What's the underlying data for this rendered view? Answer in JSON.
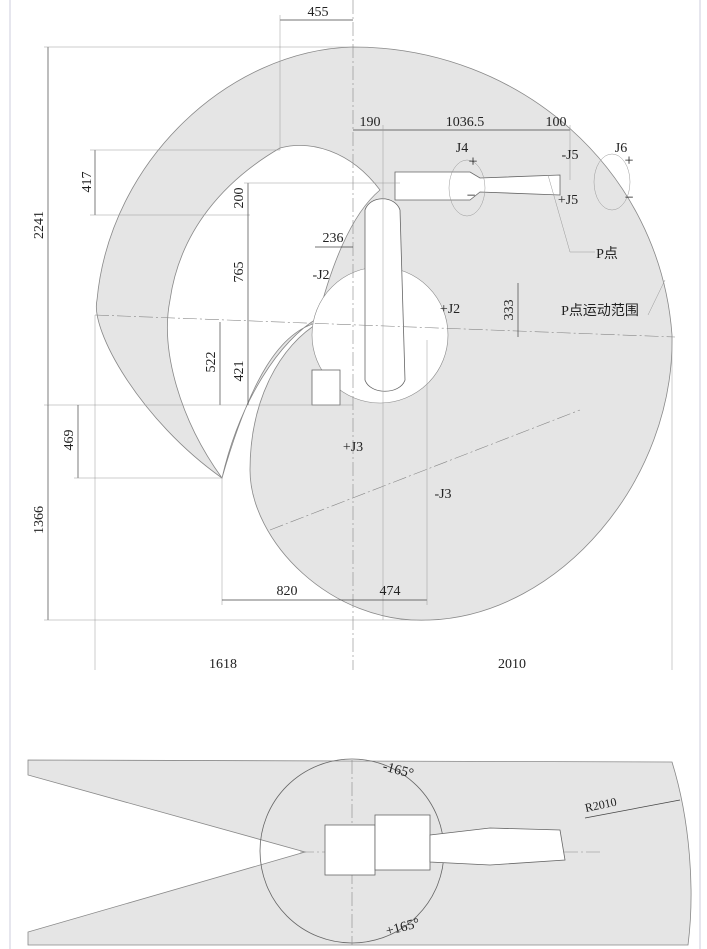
{
  "side_view": {
    "dimensions": [
      "455",
      "190",
      "1036.5",
      "100",
      "417",
      "200",
      "2241",
      "236",
      "765",
      "333",
      "522",
      "421",
      "469",
      "1366",
      "820",
      "474",
      "1618",
      "2010"
    ],
    "joint_labels": [
      "J4",
      "-J5",
      "+J5",
      "J6",
      "-J2",
      "+J2",
      "+J3",
      "-J3"
    ],
    "signs": [
      "+",
      "−",
      "+",
      "−"
    ],
    "p_point": "P点",
    "p_range": "P点运动范围"
  },
  "top_view": {
    "angles": [
      "-165°",
      "+165°"
    ],
    "radius": "R2010"
  }
}
